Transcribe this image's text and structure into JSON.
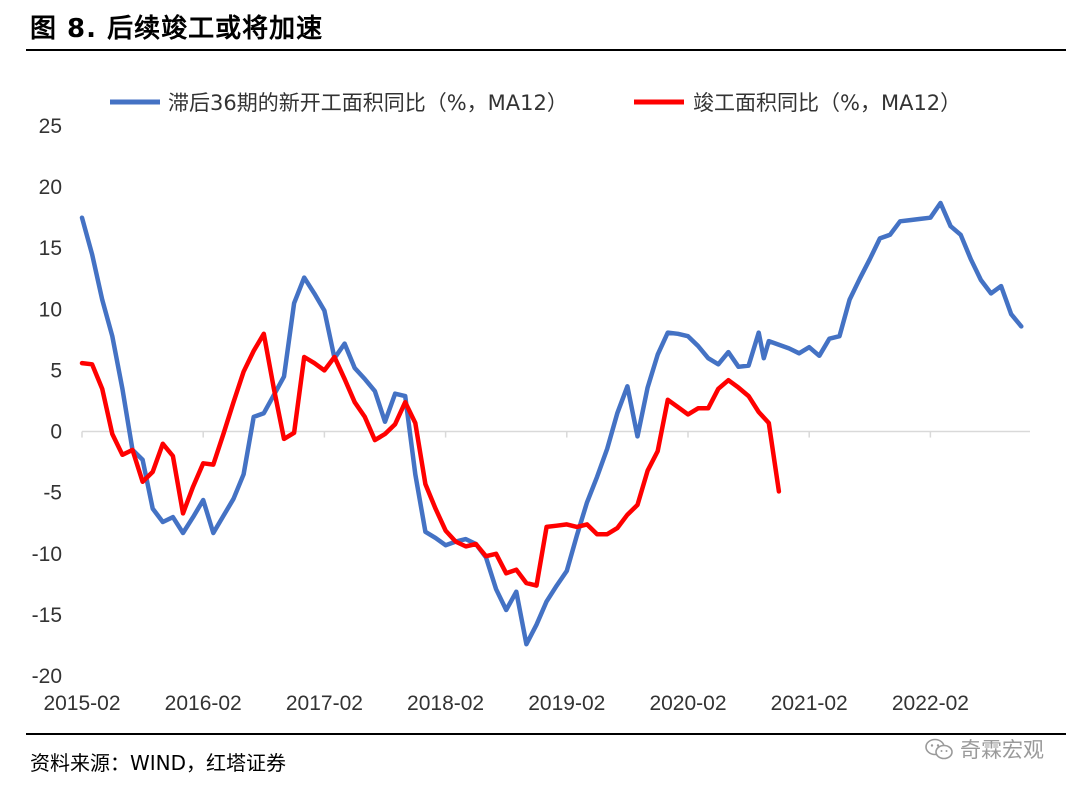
{
  "header": {
    "title": "图 8. 后续竣工或将加速"
  },
  "footer": {
    "source": "资料来源：WIND，红塔证券",
    "watermark": "奇霖宏观"
  },
  "colors": {
    "blue": "#4472C4",
    "red": "#FF0000",
    "axis": "#d9d9d9"
  },
  "chart_data": {
    "type": "line",
    "title": "",
    "xlabel": "",
    "ylabel": "",
    "ylim": [
      -20,
      25
    ],
    "yticks": [
      25,
      20,
      15,
      10,
      5,
      0,
      -5,
      -10,
      -15,
      -20
    ],
    "xticks": [
      "2015-02",
      "2016-02",
      "2017-02",
      "2018-02",
      "2019-02",
      "2020-02",
      "2021-02",
      "2022-02"
    ],
    "x_start": "2015-02",
    "legend_position": "top",
    "grid": false,
    "series": [
      {
        "name": "滞后36期的新开工面积同比（%，MA12）",
        "color": "#4472C4",
        "values": [
          17.5,
          14.5,
          10.8,
          7.8,
          3.5,
          -1.5,
          -2.3,
          -6.3,
          -7.4,
          -7.0,
          -8.3,
          -7.0,
          -5.6,
          -8.3,
          -6.9,
          -5.5,
          -3.5,
          1.2,
          1.5,
          3.0,
          4.5,
          10.5,
          12.6,
          11.3,
          9.9,
          6.0,
          7.2,
          5.2,
          4.3,
          3.3,
          0.8,
          3.1,
          2.9,
          -3.5,
          -8.2,
          -8.7,
          -9.3,
          -9.0,
          -8.8,
          -9.2,
          -10.3,
          -12.9,
          -14.6,
          -13.1,
          -17.4,
          -15.8,
          -13.9,
          -12.6,
          -11.4,
          -8.5,
          -5.8,
          -3.7,
          -1.4,
          1.5,
          3.7,
          -0.4,
          3.6,
          6.3,
          8.1,
          8.0,
          7.8,
          7.0,
          6.0,
          5.5,
          6.5,
          5.3,
          5.4,
          8.1,
          6.0,
          7.4,
          7.1,
          6.8,
          6.4,
          6.9,
          6.2,
          7.6,
          7.8,
          10.8,
          12.5,
          14.1,
          15.8,
          16.1,
          17.2,
          17.3,
          17.4,
          17.5,
          18.7,
          16.8,
          16.1,
          14.1,
          12.4,
          11.3,
          11.9,
          9.6,
          8.6
        ],
        "x_offsets": [
          0,
          1,
          2,
          3,
          4,
          5,
          6,
          7,
          8,
          9,
          10,
          11,
          12,
          13,
          14,
          15,
          16,
          17,
          18,
          19,
          20,
          21,
          22,
          23,
          24,
          25,
          26,
          27,
          28,
          29,
          30,
          31,
          32,
          33,
          34,
          35,
          36,
          37,
          38,
          39,
          40,
          41,
          42,
          43,
          44,
          45,
          46,
          47,
          48,
          49,
          50,
          51,
          52,
          53,
          54,
          55,
          56,
          57,
          58,
          59,
          60,
          61,
          62,
          63,
          64,
          65,
          66,
          67,
          67.5,
          68,
          69,
          70,
          71,
          72,
          73,
          74,
          75,
          76,
          77,
          78,
          79,
          80,
          81,
          82,
          83,
          84,
          85,
          86,
          87,
          88,
          89,
          90,
          91,
          92,
          93
        ]
      },
      {
        "name": "竣工面积同比（%，MA12）",
        "color": "#FF0000",
        "values": [
          5.6,
          5.5,
          3.5,
          -0.2,
          -1.9,
          -1.5,
          -4.1,
          -3.3,
          -1.0,
          -2.0,
          -6.7,
          -4.5,
          -2.6,
          -2.7,
          -0.2,
          2.4,
          4.9,
          6.6,
          8.0,
          3.5,
          -0.6,
          -0.1,
          6.1,
          5.6,
          5.0,
          6.1,
          4.3,
          2.4,
          1.2,
          -0.7,
          -0.2,
          0.6,
          2.4,
          0.7,
          -4.3,
          -6.3,
          -8.1,
          -9.0,
          -9.4,
          -9.2,
          -10.2,
          -10.0,
          -11.6,
          -11.3,
          -12.4,
          -12.6,
          -7.8,
          -7.7,
          -7.6,
          -7.8,
          -7.6,
          -8.4,
          -8.4,
          -7.9,
          -6.8,
          -6.0,
          -3.2,
          -1.6,
          2.6,
          2.0,
          1.4,
          1.9,
          1.9,
          3.5,
          4.2,
          3.6,
          2.9,
          1.6,
          0.7,
          -4.9
        ],
        "x_offsets": [
          0,
          1,
          2,
          3,
          4,
          5,
          6,
          7,
          8,
          9,
          10,
          11,
          12,
          13,
          14,
          15,
          16,
          17,
          18,
          19,
          20,
          21,
          22,
          23,
          24,
          25,
          26,
          27,
          28,
          29,
          30,
          31,
          32,
          33,
          34,
          35,
          36,
          37,
          38,
          39,
          40,
          41,
          42,
          43,
          44,
          45,
          46,
          47,
          48,
          49,
          50,
          51,
          52,
          53,
          54,
          55,
          56,
          57,
          58,
          59,
          60,
          61,
          62,
          63,
          64,
          65,
          66,
          67,
          68,
          69
        ]
      }
    ]
  }
}
